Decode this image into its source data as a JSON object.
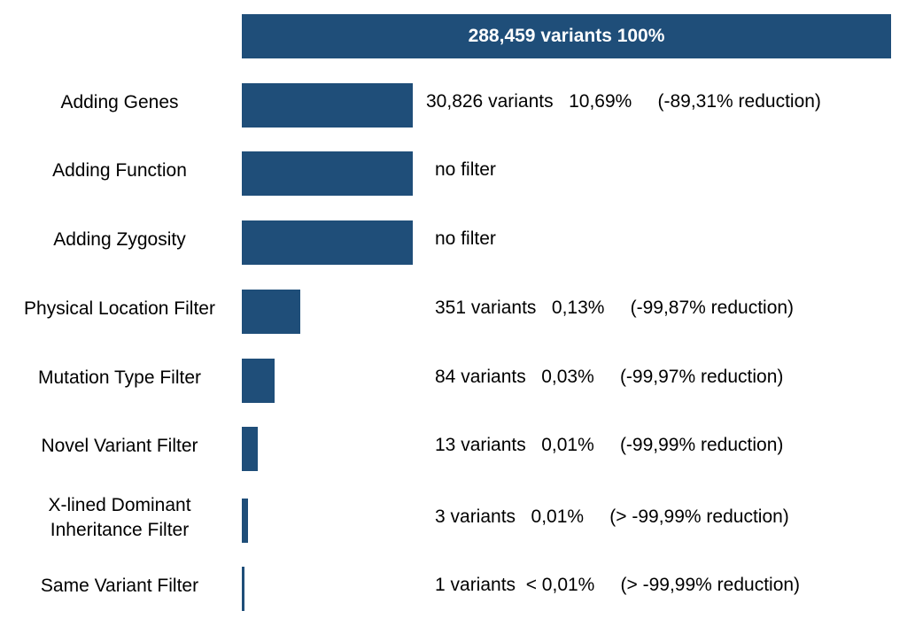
{
  "chart_data": {
    "type": "bar",
    "orientation": "horizontal",
    "title": "",
    "xlabel": "",
    "ylabel": "",
    "bar_color": "#1f4e79",
    "top_bar": {
      "value": 288459,
      "label": "288,459 variants 100%"
    },
    "categories": [
      "Adding Genes",
      "Adding Function",
      "Adding Zygosity",
      "Physical Location Filter",
      "Mutation Type Filter",
      "Novel Variant Filter",
      "X-lined Dominant\nInheritance Filter",
      "Same Variant Filter"
    ],
    "values": [
      30826,
      30826,
      30826,
      351,
      84,
      13,
      3,
      1
    ],
    "annotations": [
      "30,826 variants   10,69%     (-89,31% reduction)",
      "no filter",
      "no filter",
      "351 variants   0,13%     (-99,87% reduction)",
      "84 variants   0,03%     (-99,97% reduction)",
      "13 variants   0,01%     (-99,99% reduction)",
      "3 variants   0,01%     (> -99,99% reduction)",
      "1 variants  < 0,01%     (> -99,99% reduction)"
    ]
  }
}
